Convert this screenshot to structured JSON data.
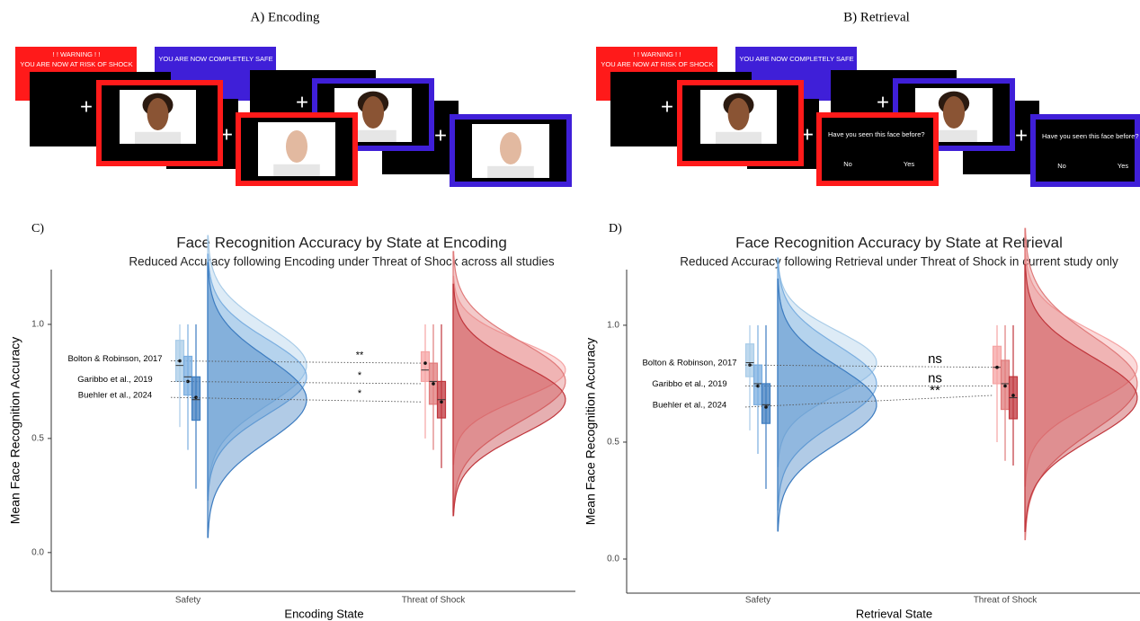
{
  "panels": [
    {
      "title": "A) Encoding",
      "warning": [
        "! ! WARNING ! !",
        "YOU ARE NOW AT RISK OF SHOCK"
      ],
      "safe": "YOU ARE NOW COMPLETELY SAFE",
      "fixation": "+"
    },
    {
      "title": "B) Retrieval",
      "warning": [
        "! ! WARNING ! !",
        "YOU ARE NOW AT RISK OF SHOCK"
      ],
      "safe": "YOU ARE NOW COMPLETELY SAFE",
      "fixation": "+",
      "question": "Have you seen this face before?",
      "responses": [
        "No",
        "Yes"
      ]
    }
  ],
  "chart_data": [
    {
      "type": "raincloud",
      "panel_label": "C)",
      "title": "Face Recognition Accuracy by State at Encoding",
      "subtitle": "Reduced Accuracy following Encoding under Threat of Shock across all studies",
      "xlabel": "Encoding State",
      "ylabel": "Mean Face Recognition Accuracy",
      "categories": [
        "Safety",
        "Threat of Shock"
      ],
      "ylim": [
        -0.17,
        1.24
      ],
      "yticks": [
        {
          "value": 0,
          "label": "0.0"
        },
        0.5,
        {
          "value": 1,
          "label": "1.0"
        }
      ],
      "series": [
        {
          "name": "Bolton & Robinson, 2017",
          "colors": [
            "#a9cce8",
            "#f5a3a3"
          ],
          "mean": [
            0.84,
            0.83
          ],
          "annotation": "**",
          "box": [
            {
              "low": 0.55,
              "q1": 0.75,
              "median": 0.82,
              "q3": 0.93,
              "high": 1.0
            },
            {
              "low": 0.5,
              "q1": 0.75,
              "median": 0.8,
              "q3": 0.88,
              "high": 1.0
            }
          ]
        },
        {
          "name": "Garibbo et al., 2019",
          "colors": [
            "#7aaee0",
            "#e07b7b"
          ],
          "mean": [
            0.75,
            0.74
          ],
          "annotation": "*",
          "box": [
            {
              "low": 0.45,
              "q1": 0.69,
              "median": 0.77,
              "q3": 0.86,
              "high": 1.0
            },
            {
              "low": 0.45,
              "q1": 0.65,
              "median": 0.75,
              "q3": 0.83,
              "high": 1.0
            }
          ]
        },
        {
          "name": "Buehler et al., 2024",
          "colors": [
            "#3d7cc0",
            "#c0363c"
          ],
          "mean": [
            0.68,
            0.66
          ],
          "annotation": "*",
          "box": [
            {
              "low": 0.28,
              "q1": 0.58,
              "median": 0.67,
              "q3": 0.77,
              "high": 1.0
            },
            {
              "low": 0.37,
              "q1": 0.59,
              "median": 0.67,
              "q3": 0.75,
              "high": 1.0
            }
          ]
        }
      ]
    },
    {
      "type": "raincloud",
      "panel_label": "D)",
      "title": "Face Recognition Accuracy by State at Retrieval",
      "subtitle": "Reduced Accuracy following Retrieval under Threat of Shock in current study only",
      "xlabel": "Retrieval State",
      "ylabel": "Mean Face Recognition Accuracy",
      "categories": [
        "Safety",
        "Threat of Shock"
      ],
      "ylim": [
        -0.146,
        1.238
      ],
      "yticks": [
        {
          "value": 0,
          "label": "0.0"
        },
        0.5,
        {
          "value": 1,
          "label": "1.0"
        }
      ],
      "series": [
        {
          "name": "Bolton & Robinson, 2017",
          "colors": [
            "#a9cce8",
            "#f5a3a3"
          ],
          "mean": [
            0.83,
            0.82
          ],
          "annotation": "ns",
          "box": [
            {
              "low": 0.55,
              "q1": 0.78,
              "median": 0.84,
              "q3": 0.92,
              "high": 1.0
            },
            {
              "low": 0.5,
              "q1": 0.75,
              "median": 0.82,
              "q3": 0.91,
              "high": 1.0
            }
          ]
        },
        {
          "name": "Garibbo et al., 2019",
          "colors": [
            "#7aaee0",
            "#e07b7b"
          ],
          "mean": [
            0.74,
            0.74
          ],
          "annotation": "ns",
          "box": [
            {
              "low": 0.45,
              "q1": 0.66,
              "median": 0.75,
              "q3": 0.83,
              "high": 1.0
            },
            {
              "low": 0.42,
              "q1": 0.64,
              "median": 0.75,
              "q3": 0.85,
              "high": 1.0
            }
          ]
        },
        {
          "name": "Buehler et al., 2024",
          "colors": [
            "#3d7cc0",
            "#c0363c"
          ],
          "mean": [
            0.65,
            0.7
          ],
          "annotation": "**",
          "box": [
            {
              "low": 0.3,
              "q1": 0.58,
              "median": 0.66,
              "q3": 0.75,
              "high": 1.0
            },
            {
              "low": 0.4,
              "q1": 0.6,
              "median": 0.69,
              "q3": 0.78,
              "high": 1.0
            }
          ]
        }
      ]
    }
  ]
}
